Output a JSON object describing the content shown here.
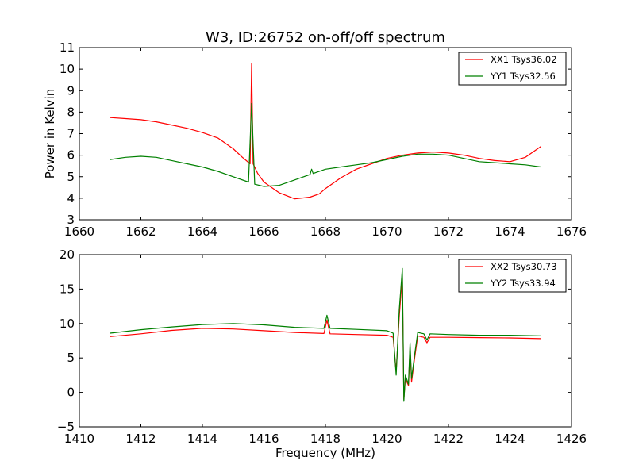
{
  "chart_data": [
    {
      "type": "line",
      "title": "W3, ID:26752 on-off/off spectrum",
      "xlabel": "",
      "ylabel": "Power in Kelvin",
      "xlim": [
        1660,
        1676
      ],
      "ylim": [
        3,
        11
      ],
      "xticks": [
        "1660",
        "1662",
        "1664",
        "1666",
        "1668",
        "1670",
        "1672",
        "1674",
        "1676"
      ],
      "yticks": [
        "3",
        "4",
        "5",
        "6",
        "7",
        "8",
        "9",
        "10",
        "11"
      ],
      "legend_position": "top-right",
      "series": [
        {
          "name": "XX1 Tsys36.02",
          "color": "#ff0000",
          "x": [
            1661.0,
            1661.5,
            1662.0,
            1662.5,
            1663.0,
            1663.5,
            1664.0,
            1664.5,
            1665.0,
            1665.3,
            1665.55,
            1665.6,
            1665.65,
            1665.8,
            1666.0,
            1666.5,
            1667.0,
            1667.5,
            1667.8,
            1668.0,
            1668.5,
            1669.0,
            1669.5,
            1670.0,
            1670.5,
            1671.0,
            1671.5,
            1672.0,
            1672.5,
            1673.0,
            1673.5,
            1674.0,
            1674.5,
            1675.0
          ],
          "y": [
            7.75,
            7.7,
            7.65,
            7.55,
            7.4,
            7.25,
            7.05,
            6.8,
            6.3,
            5.9,
            5.6,
            10.25,
            5.6,
            5.15,
            4.75,
            4.25,
            3.97,
            4.05,
            4.2,
            4.45,
            4.95,
            5.35,
            5.6,
            5.85,
            6.0,
            6.1,
            6.15,
            6.1,
            6.0,
            5.85,
            5.75,
            5.7,
            5.9,
            6.4
          ]
        },
        {
          "name": "YY1 Tsys32.56",
          "color": "#008000",
          "x": [
            1661.0,
            1661.5,
            1662.0,
            1662.5,
            1663.0,
            1663.5,
            1664.0,
            1664.5,
            1665.0,
            1665.5,
            1665.6,
            1665.7,
            1666.0,
            1666.5,
            1667.0,
            1667.5,
            1667.55,
            1667.6,
            1668.0,
            1668.5,
            1669.0,
            1669.5,
            1670.0,
            1670.5,
            1671.0,
            1671.5,
            1672.0,
            1672.5,
            1673.0,
            1673.5,
            1674.0,
            1674.5,
            1675.0
          ],
          "y": [
            5.8,
            5.9,
            5.95,
            5.9,
            5.75,
            5.6,
            5.45,
            5.25,
            5.0,
            4.75,
            8.4,
            4.65,
            4.55,
            4.6,
            4.85,
            5.1,
            5.35,
            5.15,
            5.35,
            5.45,
            5.55,
            5.65,
            5.8,
            5.95,
            6.05,
            6.05,
            6.0,
            5.85,
            5.7,
            5.65,
            5.6,
            5.55,
            5.45
          ]
        }
      ]
    },
    {
      "type": "line",
      "title": "",
      "xlabel": "Frequency (MHz)",
      "ylabel": "",
      "xlim": [
        1410,
        1426
      ],
      "ylim": [
        -5,
        20
      ],
      "xticks": [
        "1410",
        "1412",
        "1414",
        "1416",
        "1418",
        "1420",
        "1422",
        "1424",
        "1426"
      ],
      "yticks": [
        "−5",
        "0",
        "5",
        "10",
        "15",
        "20"
      ],
      "legend_position": "top-right",
      "series": [
        {
          "name": "XX2 Tsys30.73",
          "color": "#ff0000",
          "x": [
            1411.0,
            1412.0,
            1413.0,
            1414.0,
            1415.0,
            1416.0,
            1417.0,
            1417.95,
            1418.05,
            1418.15,
            1419.0,
            1420.0,
            1420.2,
            1420.3,
            1420.4,
            1420.5,
            1420.55,
            1420.6,
            1420.7,
            1420.75,
            1420.8,
            1420.9,
            1421.0,
            1421.2,
            1421.3,
            1421.4,
            1422.0,
            1423.0,
            1424.0,
            1425.0
          ],
          "y": [
            8.1,
            8.5,
            9.0,
            9.3,
            9.2,
            8.95,
            8.7,
            8.55,
            10.5,
            8.5,
            8.4,
            8.3,
            8.0,
            3.0,
            11.0,
            17.0,
            -1.0,
            2.0,
            1.0,
            6.5,
            1.5,
            5.0,
            8.2,
            8.0,
            7.2,
            8.0,
            8.0,
            7.95,
            7.9,
            7.8
          ]
        },
        {
          "name": "YY2 Tsys33.94",
          "color": "#008000",
          "x": [
            1411.0,
            1412.0,
            1413.0,
            1414.0,
            1415.0,
            1416.0,
            1417.0,
            1417.95,
            1418.05,
            1418.15,
            1419.0,
            1420.0,
            1420.2,
            1420.3,
            1420.4,
            1420.5,
            1420.55,
            1420.6,
            1420.7,
            1420.75,
            1420.8,
            1420.9,
            1421.0,
            1421.2,
            1421.3,
            1421.4,
            1422.0,
            1423.0,
            1424.0,
            1425.0
          ],
          "y": [
            8.6,
            9.1,
            9.5,
            9.85,
            10.0,
            9.8,
            9.45,
            9.3,
            11.2,
            9.3,
            9.15,
            8.95,
            8.6,
            2.5,
            12.0,
            18.0,
            -1.3,
            2.5,
            1.2,
            7.2,
            2.0,
            5.5,
            8.7,
            8.5,
            7.6,
            8.5,
            8.4,
            8.3,
            8.3,
            8.2
          ]
        }
      ]
    }
  ]
}
